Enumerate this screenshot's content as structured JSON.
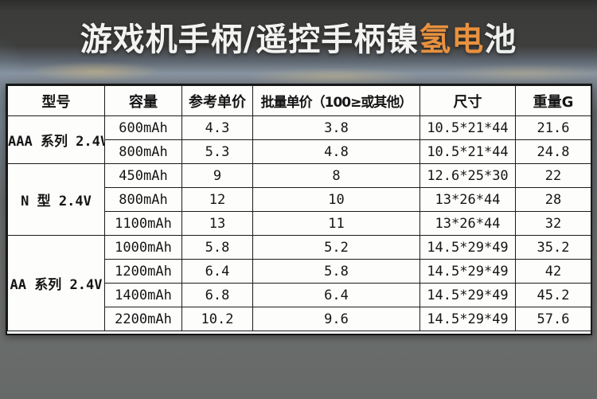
{
  "title": {
    "segments": [
      {
        "text": "游戏机手柄/遥控手柄镍",
        "color": "#f3f3f1"
      },
      {
        "text": "氢电",
        "color": "#e8913f"
      },
      {
        "text": "池",
        "color": "#eef0ed"
      }
    ]
  },
  "colors": {
    "accent_orange": "#e8913f",
    "title_white": "#f3f3f1",
    "table_border": "#1b1b1b",
    "cell_background": "#fdfdfc"
  },
  "table": {
    "headers": [
      "型号",
      "容量",
      "参考单价",
      "批量单价（100≥或其他）",
      "尺寸",
      "重量G"
    ],
    "groups": [
      {
        "model": "AAA 系列 2.4V",
        "rows": [
          [
            "600mAh",
            "4.3",
            "3.8",
            "10.5*21*44",
            "21.6"
          ],
          [
            "800mAh",
            "5.3",
            "4.8",
            "10.5*21*44",
            "24.8"
          ]
        ]
      },
      {
        "model": "N 型 2.4V",
        "rows": [
          [
            "450mAh",
            "9",
            "8",
            "12.6*25*30",
            "22"
          ],
          [
            "800mAh",
            "12",
            "10",
            "13*26*44",
            "28"
          ],
          [
            "1100mAh",
            "13",
            "11",
            "13*26*44",
            "32"
          ]
        ]
      },
      {
        "model": "AA 系列 2.4V",
        "rows": [
          [
            "1000mAh",
            "5.8",
            "5.2",
            "14.5*29*49",
            "35.2"
          ],
          [
            "1200mAh",
            "6.4",
            "5.8",
            "14.5*29*49",
            "42"
          ],
          [
            "1400mAh",
            "6.8",
            "6.4",
            "14.5*29*49",
            "45.2"
          ],
          [
            "2200mAh",
            "10.2",
            "9.6",
            "14.5*29*49",
            "57.6"
          ]
        ]
      }
    ]
  }
}
